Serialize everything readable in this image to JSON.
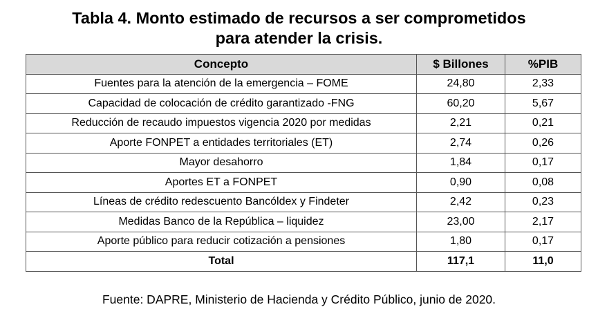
{
  "title": {
    "line1": "Tabla 4. Monto estimado de recursos a ser comprometidos",
    "line2": "para atender la crisis."
  },
  "table": {
    "headers": [
      "Concepto",
      "$ Billones",
      "%PIB"
    ],
    "rows": [
      [
        "Fuentes para la atención de la emergencia – FOME",
        "24,80",
        "2,33"
      ],
      [
        "Capacidad de colocación de crédito garantizado -FNG",
        "60,20",
        "5,67"
      ],
      [
        "Reducción de recaudo impuestos vigencia 2020 por medidas",
        "2,21",
        "0,21"
      ],
      [
        "Aporte FONPET a entidades territoriales (ET)",
        "2,74",
        "0,26"
      ],
      [
        "Mayor desahorro",
        "1,84",
        "0,17"
      ],
      [
        "Aportes ET a FONPET",
        "0,90",
        "0,08"
      ],
      [
        "Líneas de crédito redescuento Bancóldex y Findeter",
        "2,42",
        "0,23"
      ],
      [
        "Medidas Banco de la República – liquidez",
        "23,00",
        "2,17"
      ],
      [
        "Aporte público para reducir cotización a pensiones",
        "1,80",
        "0,17"
      ]
    ],
    "total": [
      "Total",
      "117,1",
      "11,0"
    ]
  },
  "source": "Fuente: DAPRE, Ministerio de Hacienda y Crédito Público, junio de 2020."
}
